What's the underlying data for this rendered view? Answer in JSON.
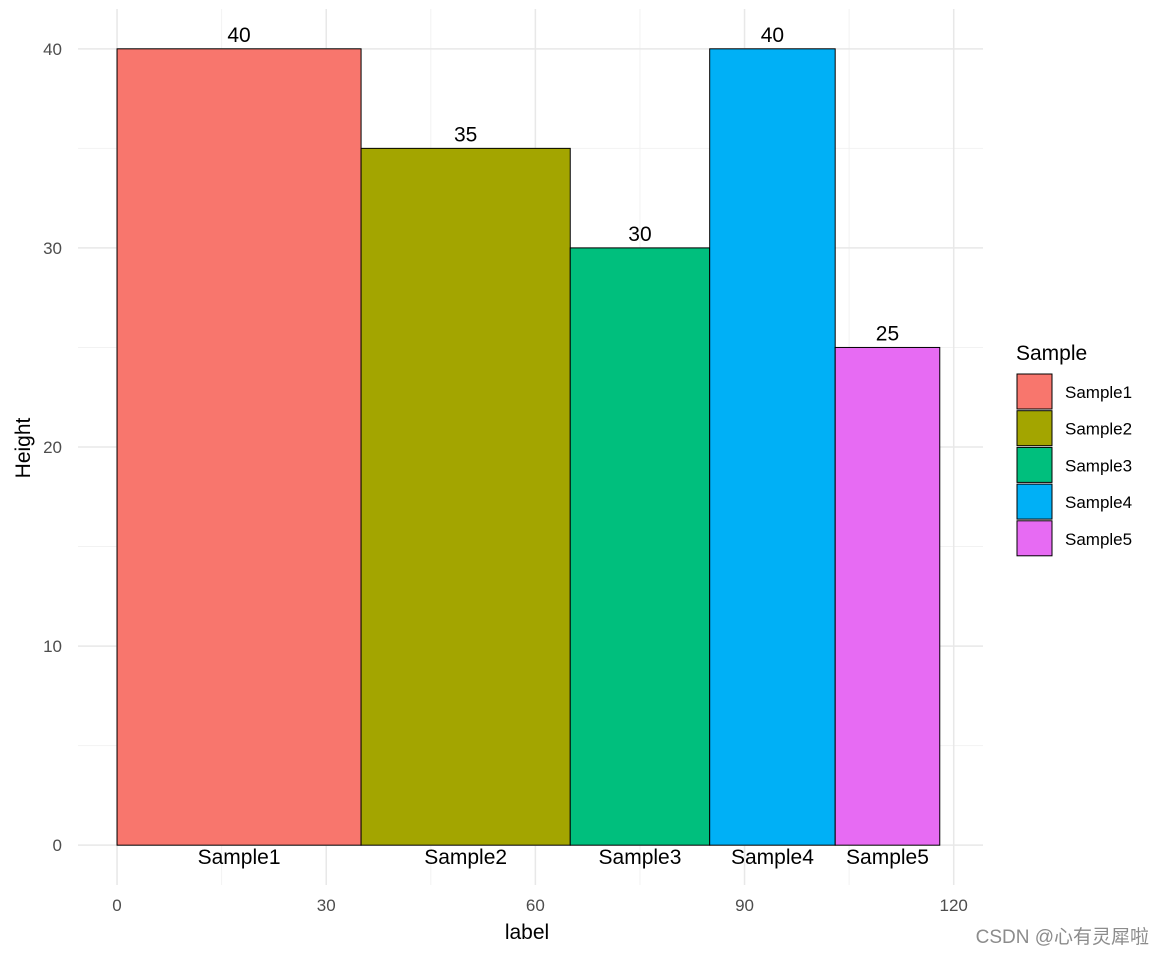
{
  "chart_data": {
    "type": "bar",
    "xlabel": "label",
    "ylabel": "Height",
    "xlim": [
      -5.6,
      124.2
    ],
    "ylim": [
      -2,
      42
    ],
    "x_ticks": [
      0,
      30,
      60,
      90,
      120
    ],
    "y_ticks": [
      0,
      10,
      20,
      30,
      40
    ],
    "grid": true,
    "legend": {
      "title": "Sample",
      "position": "right"
    },
    "bars": [
      {
        "name": "Sample1",
        "xmin": 0,
        "xmax": 35,
        "value": 40,
        "color": "#F8766D"
      },
      {
        "name": "Sample2",
        "xmin": 35,
        "xmax": 65,
        "value": 35,
        "color": "#A3A500"
      },
      {
        "name": "Sample3",
        "xmin": 65,
        "xmax": 85,
        "value": 30,
        "color": "#00BF7D"
      },
      {
        "name": "Sample4",
        "xmin": 85,
        "xmax": 103,
        "value": 40,
        "color": "#00B0F6"
      },
      {
        "name": "Sample5",
        "xmin": 103,
        "xmax": 118,
        "value": 25,
        "color": "#E76BF3"
      }
    ]
  },
  "watermark": "CSDN @心有灵犀啦"
}
